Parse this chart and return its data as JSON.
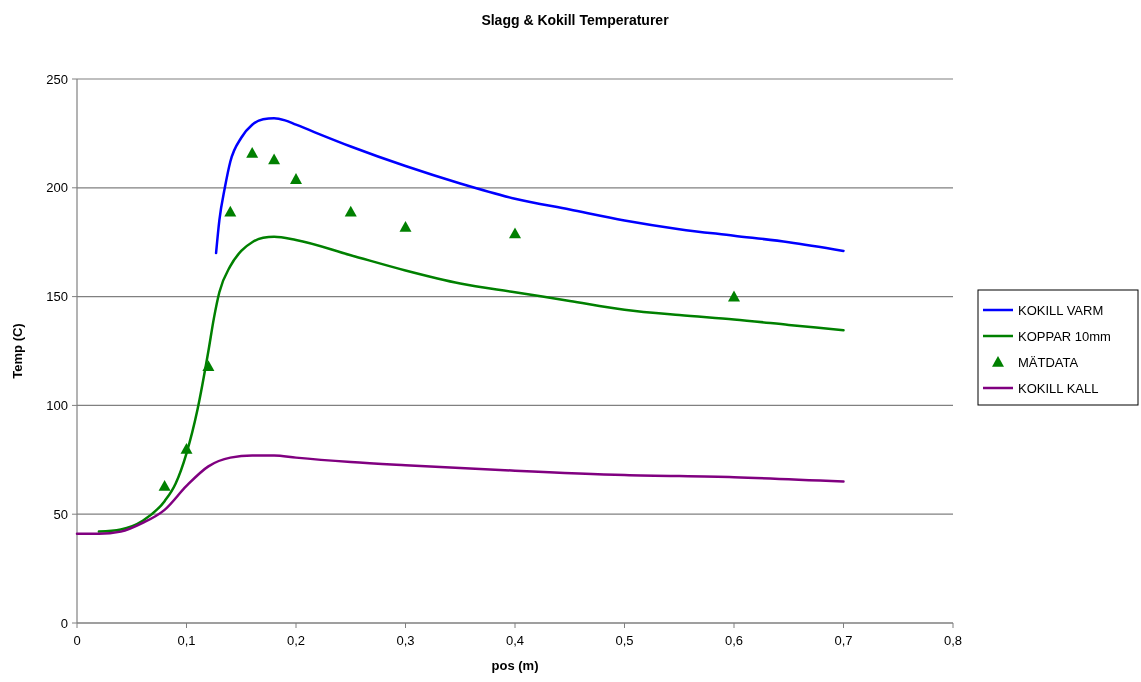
{
  "chart_data": {
    "type": "line",
    "title": "Slagg & Kokill Temperaturer",
    "xlabel": "pos (m)",
    "ylabel": "Temp (C)",
    "xlim": [
      0,
      0.8
    ],
    "xticks": [
      0,
      {
        "value": 0.1,
        "label": "0,1"
      },
      {
        "value": 0.2,
        "label": "0,2"
      },
      {
        "value": 0.3,
        "label": "0,3"
      },
      {
        "value": 0.4,
        "label": "0,4"
      },
      {
        "value": 0.5,
        "label": "0,5"
      },
      {
        "value": 0.6,
        "label": "0,6"
      },
      {
        "value": 0.7,
        "label": "0,7"
      },
      {
        "value": 0.8,
        "label": "0,8"
      }
    ],
    "ylim": [
      0,
      250
    ],
    "yticks": [
      0,
      50,
      100,
      150,
      200,
      250
    ],
    "grid": "y",
    "legend": "right",
    "series": [
      {
        "name": "KOKILL VARM",
        "color": "#0000ff",
        "x": [
          0.127,
          0.13,
          0.135,
          0.14,
          0.15,
          0.16,
          0.17,
          0.18,
          0.19,
          0.2,
          0.25,
          0.3,
          0.35,
          0.4,
          0.45,
          0.5,
          0.55,
          0.6,
          0.65,
          0.7
        ],
        "values": [
          170,
          185,
          200,
          212,
          223,
          229,
          231.5,
          232,
          231,
          229,
          219,
          210,
          202,
          195,
          190,
          185,
          181,
          178,
          175,
          171
        ]
      },
      {
        "name": "KOPPAR 10mm",
        "color": "#008000",
        "x": [
          0.02,
          0.04,
          0.06,
          0.08,
          0.09,
          0.1,
          0.11,
          0.12,
          0.125,
          0.13,
          0.14,
          0.15,
          0.16,
          0.17,
          0.18,
          0.2,
          0.25,
          0.3,
          0.35,
          0.4,
          0.45,
          0.5,
          0.55,
          0.6,
          0.65,
          0.7
        ],
        "values": [
          42,
          43,
          47,
          56,
          64,
          78,
          98,
          125,
          140,
          152,
          164,
          171,
          175,
          177,
          177.5,
          176,
          169,
          162,
          156,
          152,
          148,
          144,
          141.5,
          139.5,
          137,
          134.5
        ]
      },
      {
        "name": "MÄTDATA",
        "type": "scatter",
        "marker": "triangle",
        "color": "#008000",
        "x": [
          0.08,
          0.1,
          0.12,
          0.14,
          0.16,
          0.18,
          0.2,
          0.25,
          0.3,
          0.4,
          0.6
        ],
        "values": [
          63,
          80,
          118,
          189,
          216,
          213,
          204,
          189,
          182,
          179,
          150
        ]
      },
      {
        "name": "KOKILL KALL",
        "color": "#800080",
        "x": [
          0,
          0.02,
          0.04,
          0.06,
          0.08,
          0.1,
          0.12,
          0.14,
          0.16,
          0.18,
          0.2,
          0.25,
          0.3,
          0.4,
          0.5,
          0.6,
          0.7
        ],
        "values": [
          41,
          41,
          42,
          46,
          52,
          63,
          72,
          76,
          77,
          77,
          76,
          74,
          72.5,
          70,
          68,
          67,
          65
        ]
      }
    ]
  }
}
